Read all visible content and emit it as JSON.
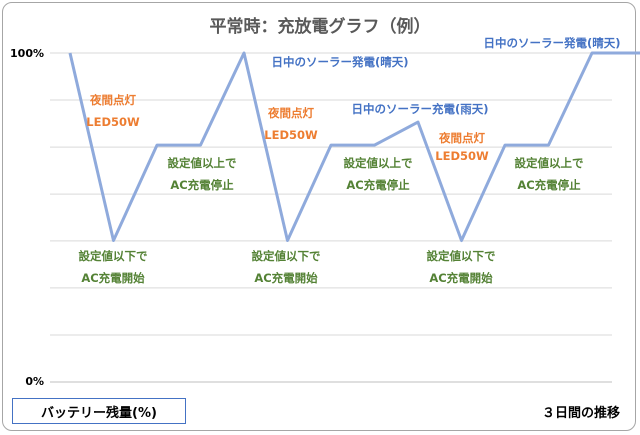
{
  "chart_data": {
    "type": "line",
    "title": "平常時：充放電グラフ（例）",
    "xlabel": "３日間の推移",
    "ylabel": "バッテリー残量(%)",
    "ylim": [
      0,
      100
    ],
    "yticks": [
      "100%",
      "0%"
    ],
    "grid": true,
    "colors": {
      "line": "#8faadc",
      "blue_text": "#4472c4",
      "orange_text": "#ed7d31",
      "green_text": "#548235",
      "grid": "#d9d9d9"
    },
    "series": [
      {
        "x": [
          0,
          1,
          2,
          3,
          4,
          5,
          6,
          7,
          8,
          9,
          10,
          11,
          12,
          13,
          14
        ],
        "values": [
          100,
          43,
          72,
          72,
          100,
          43,
          72,
          72,
          79,
          43,
          72,
          72,
          100,
          100,
          100
        ]
      }
    ],
    "annotations": [
      {
        "text": "夜間点灯",
        "color": "orange"
      },
      {
        "text": "LED50W",
        "color": "orange"
      },
      {
        "text": "設定値以下で",
        "color": "green"
      },
      {
        "text": "AC充電開始",
        "color": "green"
      },
      {
        "text": "設定値以上で",
        "color": "green"
      },
      {
        "text": "AC充電停止",
        "color": "green"
      },
      {
        "text": "日中のソーラー発電(晴天)",
        "color": "blue"
      },
      {
        "text": "夜間点灯",
        "color": "orange"
      },
      {
        "text": "LED50W",
        "color": "orange"
      },
      {
        "text": "設定値以下で",
        "color": "green"
      },
      {
        "text": "AC充電開始",
        "color": "green"
      },
      {
        "text": "設定値以上で",
        "color": "green"
      },
      {
        "text": "AC充電停止",
        "color": "green"
      },
      {
        "text": "日中のソーラー充電(雨天)",
        "color": "blue"
      },
      {
        "text": "夜間点灯",
        "color": "orange"
      },
      {
        "text": "LED50W",
        "color": "orange"
      },
      {
        "text": "設定値以下で",
        "color": "green"
      },
      {
        "text": "AC充電開始",
        "color": "green"
      },
      {
        "text": "設定値以上で",
        "color": "green"
      },
      {
        "text": "AC充電停止",
        "color": "green"
      },
      {
        "text": "日中のソーラー発電(晴天)",
        "color": "blue"
      }
    ]
  }
}
